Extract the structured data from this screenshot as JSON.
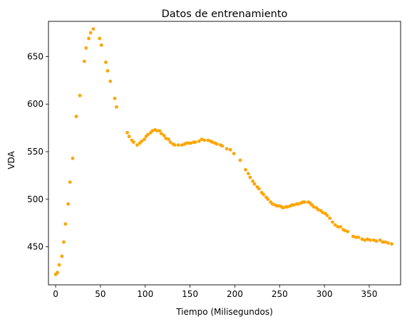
{
  "chart_data": {
    "type": "scatter",
    "title": "Datos de entrenamiento",
    "xlabel": "Tiempo (Milisegundos)",
    "ylabel": "VDA",
    "xlim": [
      -8,
      385
    ],
    "ylim": [
      410,
      687
    ],
    "xticks": [
      0,
      50,
      100,
      150,
      200,
      250,
      300,
      350
    ],
    "yticks": [
      450,
      500,
      550,
      600,
      650
    ],
    "grid": false,
    "marker_color": "#FFA500",
    "points": [
      [
        0,
        421
      ],
      [
        2,
        423
      ],
      [
        4,
        431
      ],
      [
        7,
        440
      ],
      [
        9,
        455
      ],
      [
        11,
        474
      ],
      [
        14,
        495
      ],
      [
        16,
        518
      ],
      [
        19,
        543
      ],
      [
        23,
        587
      ],
      [
        27,
        609
      ],
      [
        32,
        645
      ],
      [
        34,
        659
      ],
      [
        37,
        669
      ],
      [
        39,
        675
      ],
      [
        42,
        679
      ],
      [
        49,
        669
      ],
      [
        51,
        662
      ],
      [
        56,
        644
      ],
      [
        58,
        635
      ],
      [
        61,
        624
      ],
      [
        66,
        606
      ],
      [
        68,
        597
      ],
      [
        80,
        570
      ],
      [
        82,
        566
      ],
      [
        85,
        562
      ],
      [
        87,
        560
      ],
      [
        91,
        557
      ],
      [
        94,
        559
      ],
      [
        96,
        561
      ],
      [
        99,
        563
      ],
      [
        101,
        566
      ],
      [
        103,
        568
      ],
      [
        106,
        570
      ],
      [
        108,
        572
      ],
      [
        111,
        573
      ],
      [
        113,
        572
      ],
      [
        116,
        572
      ],
      [
        118,
        569
      ],
      [
        121,
        567
      ],
      [
        123,
        564
      ],
      [
        126,
        563
      ],
      [
        128,
        560
      ],
      [
        131,
        558
      ],
      [
        133,
        557
      ],
      [
        137,
        557
      ],
      [
        141,
        557
      ],
      [
        144,
        558
      ],
      [
        146,
        559
      ],
      [
        149,
        559
      ],
      [
        151,
        559
      ],
      [
        154,
        560
      ],
      [
        156,
        560
      ],
      [
        160,
        561
      ],
      [
        163,
        563
      ],
      [
        166,
        562
      ],
      [
        170,
        562
      ],
      [
        173,
        561
      ],
      [
        175,
        560
      ],
      [
        178,
        559
      ],
      [
        180,
        558
      ],
      [
        184,
        557
      ],
      [
        186,
        556
      ],
      [
        191,
        553
      ],
      [
        195,
        552
      ],
      [
        199,
        548
      ],
      [
        206,
        541
      ],
      [
        212,
        531
      ],
      [
        215,
        527
      ],
      [
        217,
        523
      ],
      [
        220,
        519
      ],
      [
        222,
        516
      ],
      [
        225,
        513
      ],
      [
        227,
        511
      ],
      [
        230,
        507
      ],
      [
        232,
        505
      ],
      [
        235,
        502
      ],
      [
        237,
        500
      ],
      [
        240,
        497
      ],
      [
        242,
        495
      ],
      [
        245,
        494
      ],
      [
        247,
        493
      ],
      [
        250,
        493
      ],
      [
        252,
        492
      ],
      [
        254,
        491
      ],
      [
        257,
        492
      ],
      [
        259,
        492
      ],
      [
        262,
        493
      ],
      [
        264,
        494
      ],
      [
        266,
        494
      ],
      [
        269,
        495
      ],
      [
        271,
        495
      ],
      [
        274,
        496
      ],
      [
        276,
        497
      ],
      [
        278,
        497
      ],
      [
        282,
        497
      ],
      [
        284,
        496
      ],
      [
        286,
        494
      ],
      [
        288,
        492
      ],
      [
        291,
        491
      ],
      [
        293,
        489
      ],
      [
        296,
        488
      ],
      [
        298,
        486
      ],
      [
        301,
        485
      ],
      [
        303,
        483
      ],
      [
        306,
        480
      ],
      [
        309,
        476
      ],
      [
        312,
        473
      ],
      [
        315,
        471
      ],
      [
        318,
        471
      ],
      [
        321,
        468
      ],
      [
        323,
        467
      ],
      [
        326,
        466
      ],
      [
        332,
        461
      ],
      [
        335,
        460
      ],
      [
        338,
        460
      ],
      [
        342,
        458
      ],
      [
        345,
        457
      ],
      [
        348,
        458
      ],
      [
        351,
        457
      ],
      [
        355,
        457
      ],
      [
        358,
        456
      ],
      [
        362,
        457
      ],
      [
        365,
        455
      ],
      [
        368,
        455
      ],
      [
        371,
        454
      ],
      [
        375,
        453
      ]
    ]
  }
}
